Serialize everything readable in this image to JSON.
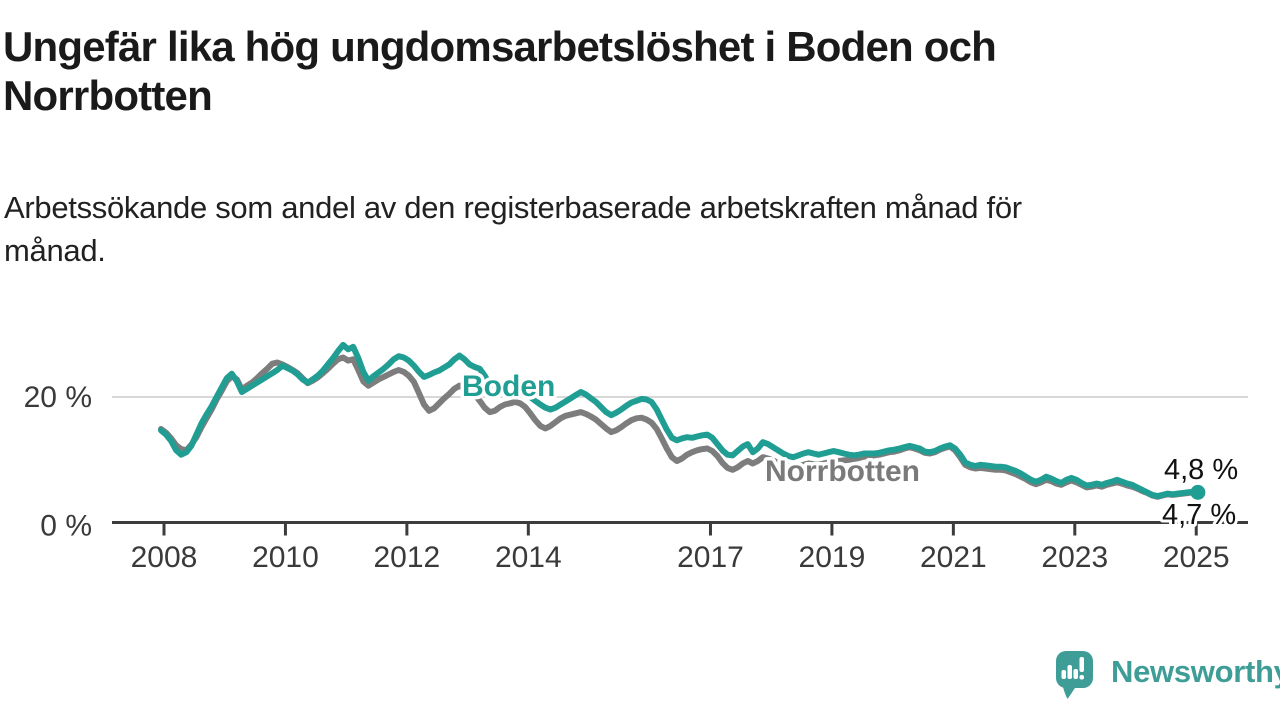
{
  "header": {
    "title_lines": [
      "Ungefär lika hög ungdomsarbetslöshet i Boden och",
      "Norrbotten"
    ],
    "subtitle_lines": [
      "Arbetssökande som andel av den registerbaserade arbetskraften månad för",
      "månad."
    ]
  },
  "chart_data": {
    "type": "line",
    "unit": "%",
    "x_start": {
      "year": 2008,
      "month": 1
    },
    "x_end": {
      "year": 2025,
      "month": 2
    },
    "x_tick_years": [
      "2008",
      "2010",
      "2012",
      "2014",
      "2017",
      "2019",
      "2021",
      "2023",
      "2025"
    ],
    "y_ticks": [
      {
        "value": 0,
        "label": "0 %"
      },
      {
        "value": 20,
        "label": "20 %"
      }
    ],
    "ylim": [
      0,
      30
    ],
    "grid": "horizontal-at-20-only",
    "legend_position": "inline-labels-on-lines",
    "series": [
      {
        "name": "Norrbotten",
        "color": "#7d7d7d",
        "end_value_label": "4,7 %",
        "values": [
          14.9,
          14.3,
          13.4,
          12.3,
          11.7,
          11.5,
          12.4,
          13.6,
          15.2,
          16.6,
          18.0,
          19.6,
          21.0,
          22.5,
          23.3,
          22.8,
          21.2,
          21.8,
          22.3,
          23.0,
          23.8,
          24.5,
          25.3,
          25.5,
          25.2,
          24.8,
          24.3,
          23.8,
          23.0,
          22.2,
          22.6,
          23.1,
          23.8,
          24.5,
          25.3,
          26.0,
          26.3,
          25.8,
          26.0,
          24.3,
          22.5,
          21.8,
          22.3,
          22.8,
          23.2,
          23.6,
          24.0,
          24.3,
          24.0,
          23.4,
          22.4,
          20.6,
          18.8,
          17.8,
          18.2,
          19.0,
          19.8,
          20.5,
          21.3,
          21.8,
          21.4,
          21.0,
          20.4,
          19.4,
          18.3,
          17.6,
          17.8,
          18.4,
          18.8,
          19.0,
          19.2,
          19.0,
          18.4,
          17.4,
          16.3,
          15.4,
          15.0,
          15.4,
          16.0,
          16.6,
          17.0,
          17.2,
          17.4,
          17.6,
          17.3,
          16.9,
          16.4,
          15.7,
          15.0,
          14.4,
          14.7,
          15.2,
          15.8,
          16.3,
          16.6,
          16.7,
          16.4,
          15.9,
          14.9,
          13.4,
          11.8,
          10.4,
          9.8,
          10.2,
          10.8,
          11.2,
          11.5,
          11.7,
          11.8,
          11.4,
          10.6,
          9.5,
          8.7,
          8.4,
          8.8,
          9.4,
          9.8,
          9.4,
          9.8,
          10.4,
          10.2,
          9.9,
          9.5,
          9.2,
          8.9,
          8.8,
          9.0,
          9.2,
          9.4,
          9.3,
          9.2,
          9.4,
          9.6,
          9.7,
          9.8,
          9.9,
          10.0,
          10.1,
          10.3,
          10.5,
          10.6,
          10.7,
          10.8,
          11.0,
          11.2,
          11.3,
          11.5,
          11.8,
          12.0,
          11.8,
          11.5,
          11.1,
          11.0,
          11.2,
          11.6,
          11.9,
          12.1,
          11.5,
          10.4,
          9.2,
          8.8,
          8.6,
          8.7,
          8.6,
          8.5,
          8.4,
          8.4,
          8.3,
          8.0,
          7.7,
          7.3,
          6.9,
          6.4,
          6.1,
          6.4,
          6.8,
          6.6,
          6.2,
          6.0,
          6.4,
          6.7,
          6.4,
          6.0,
          5.6,
          5.7,
          5.9,
          5.7,
          6.0,
          6.2,
          6.4,
          6.2,
          5.9,
          5.7,
          5.4,
          5.0,
          4.7,
          4.3,
          4.1,
          4.3,
          4.5,
          4.4,
          4.5,
          4.6,
          4.7,
          4.8,
          4.7
        ]
      },
      {
        "name": "Boden",
        "color": "#219e93",
        "end_dot": true,
        "end_value_label": "4,8 %",
        "values": [
          14.7,
          14.0,
          13.0,
          11.5,
          10.8,
          11.2,
          12.2,
          14.0,
          15.8,
          17.2,
          18.5,
          20.0,
          21.5,
          23.0,
          23.7,
          22.5,
          20.8,
          21.3,
          21.8,
          22.3,
          22.8,
          23.3,
          23.8,
          24.3,
          25.0,
          24.6,
          24.2,
          23.6,
          22.8,
          22.3,
          22.8,
          23.4,
          24.2,
          25.2,
          26.2,
          27.3,
          28.3,
          27.6,
          28.0,
          26.2,
          24.0,
          22.6,
          23.3,
          23.9,
          24.5,
          25.2,
          26.0,
          26.5,
          26.3,
          25.8,
          25.0,
          24.0,
          23.2,
          23.5,
          23.9,
          24.2,
          24.7,
          25.2,
          26.0,
          26.6,
          26.0,
          25.2,
          24.8,
          24.5,
          23.4,
          22.0,
          21.8,
          22.2,
          22.0,
          21.6,
          21.0,
          21.2,
          20.6,
          20.0,
          19.4,
          18.8,
          18.3,
          18.0,
          18.3,
          18.8,
          19.3,
          19.8,
          20.3,
          20.8,
          20.4,
          19.8,
          19.2,
          18.4,
          17.6,
          17.1,
          17.5,
          18.0,
          18.6,
          19.1,
          19.4,
          19.7,
          19.6,
          19.2,
          18.0,
          16.4,
          14.8,
          13.5,
          13.1,
          13.4,
          13.6,
          13.5,
          13.7,
          13.9,
          14.0,
          13.5,
          12.5,
          11.5,
          10.8,
          10.7,
          11.4,
          12.1,
          12.5,
          11.2,
          11.8,
          12.8,
          12.5,
          12.0,
          11.5,
          11.0,
          10.6,
          10.4,
          10.7,
          11.0,
          11.2,
          11.0,
          10.8,
          11.0,
          11.2,
          11.4,
          11.2,
          11.0,
          10.8,
          10.7,
          10.8,
          11.0,
          11.0,
          11.0,
          11.1,
          11.3,
          11.5,
          11.6,
          11.8,
          12.0,
          12.2,
          12.0,
          11.8,
          11.3,
          11.2,
          11.4,
          11.8,
          12.1,
          12.3,
          11.8,
          10.8,
          9.6,
          9.2,
          9.0,
          9.2,
          9.1,
          9.0,
          8.9,
          8.9,
          8.8,
          8.5,
          8.2,
          7.8,
          7.3,
          6.8,
          6.5,
          6.8,
          7.3,
          7.0,
          6.6,
          6.3,
          6.8,
          7.1,
          6.8,
          6.3,
          5.9,
          6.0,
          6.2,
          6.0,
          6.3,
          6.5,
          6.8,
          6.5,
          6.2,
          6.0,
          5.6,
          5.2,
          4.8,
          4.4,
          4.2,
          4.4,
          4.6,
          4.5,
          4.6,
          4.7,
          4.8,
          4.9,
          4.8
        ]
      }
    ],
    "inline_labels": [
      {
        "text": "Boden",
        "series": "Boden",
        "color": "#219e93"
      },
      {
        "text": "Norrbotten",
        "series": "Norrbotten",
        "color": "#7a7a7a"
      }
    ],
    "end_labels": [
      {
        "text": "4,8 %",
        "series": "Boden"
      },
      {
        "text": "4,7 %",
        "series": "Norrbotten"
      }
    ]
  },
  "colors": {
    "boden_line": "#219e93",
    "norrbotten_line": "#7d7d7d",
    "axis": "#3c3c3c",
    "gridline": "#d8d8d8",
    "title_text": "#1a1a1a",
    "brand_teal": "#3f9d97"
  },
  "footer": {
    "brand": "Newsworthy"
  }
}
